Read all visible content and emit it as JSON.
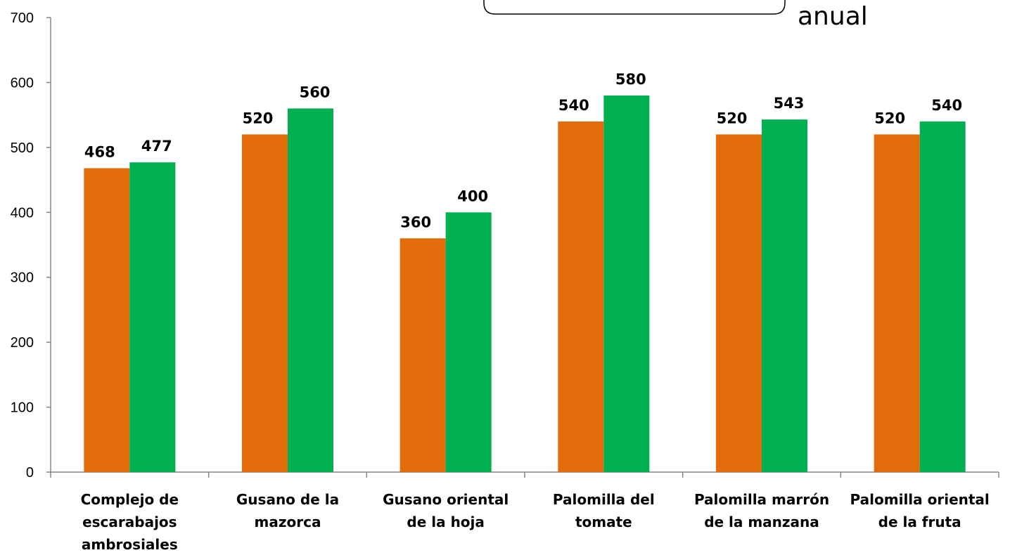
{
  "chart_data": {
    "type": "bar",
    "categories": [
      [
        "Complejo de",
        "escarabajos",
        "ambrosiales"
      ],
      [
        "Gusano de la",
        "mazorca"
      ],
      [
        "Gusano oriental",
        "de la hoja"
      ],
      [
        "Palomilla del",
        "tomate"
      ],
      [
        "Palomilla marrón",
        "de la manzana"
      ],
      [
        "Palomilla oriental",
        "de la fruta"
      ]
    ],
    "series": [
      {
        "values": [
          468,
          520,
          360,
          540,
          520,
          520
        ],
        "color": "#E36C0A"
      },
      {
        "values": [
          477,
          560,
          400,
          580,
          543,
          540
        ],
        "color": "#00B050"
      }
    ],
    "ylim": [
      0,
      700
    ],
    "yticks": [
      "0",
      "100",
      "200",
      "300",
      "400",
      "500",
      "600",
      "700"
    ],
    "grid": false,
    "axis_color": "#868686",
    "callout_text": "anual"
  }
}
